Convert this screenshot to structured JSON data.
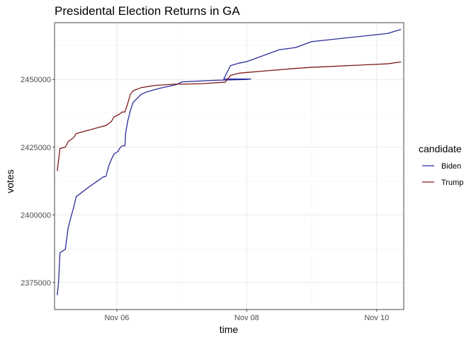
{
  "chart_data": {
    "type": "line",
    "title": "Presidental Election Returns in GA",
    "xlabel": "time",
    "ylabel": "votes",
    "x_unit": "date-time (Nov 2020)",
    "xlim": [
      "2020-11-05T01:00",
      "2020-11-10T10:00"
    ],
    "ylim": [
      2365000,
      2471000
    ],
    "x_ticks": [
      {
        "label": "Nov 06",
        "value": "2020-11-06T00:00"
      },
      {
        "label": "Nov 08",
        "value": "2020-11-08T00:00"
      },
      {
        "label": "Nov 10",
        "value": "2020-11-10T00:00"
      }
    ],
    "y_ticks": [
      {
        "label": "2375000",
        "value": 2375000
      },
      {
        "label": "2400000",
        "value": 2400000
      },
      {
        "label": "2425000",
        "value": 2425000
      },
      {
        "label": "2450000",
        "value": 2450000
      }
    ],
    "grid": true,
    "legend": {
      "title": "candidate",
      "position": "right"
    },
    "series": [
      {
        "name": "Biden",
        "color": "#2b2b9c",
        "points": [
          [
            "2020-11-05T02:00",
            2370300
          ],
          [
            "2020-11-05T02:30",
            2375300
          ],
          [
            "2020-11-05T03:00",
            2386000
          ],
          [
            "2020-11-05T05:00",
            2387300
          ],
          [
            "2020-11-05T06:00",
            2395000
          ],
          [
            "2020-11-05T07:00",
            2399000
          ],
          [
            "2020-11-05T08:00",
            2402500
          ],
          [
            "2020-11-05T09:00",
            2406700
          ],
          [
            "2020-11-05T14:00",
            2410500
          ],
          [
            "2020-11-05T19:00",
            2414000
          ],
          [
            "2020-11-05T20:00",
            2414200
          ],
          [
            "2020-11-05T21:00",
            2418000
          ],
          [
            "2020-11-05T22:00",
            2420500
          ],
          [
            "2020-11-05T23:00",
            2422500
          ],
          [
            "2020-11-06T00:30",
            2423500
          ],
          [
            "2020-11-06T01:00",
            2424500
          ],
          [
            "2020-11-06T02:00",
            2425500
          ],
          [
            "2020-11-06T03:00",
            2425500
          ],
          [
            "2020-11-06T03:15",
            2430000
          ],
          [
            "2020-11-06T04:00",
            2434500
          ],
          [
            "2020-11-06T05:00",
            2438500
          ],
          [
            "2020-11-06T06:00",
            2441500
          ],
          [
            "2020-11-06T09:00",
            2444500
          ],
          [
            "2020-11-06T11:00",
            2445400
          ],
          [
            "2020-11-06T16:00",
            2446800
          ],
          [
            "2020-11-06T22:00",
            2448100
          ],
          [
            "2020-11-07T00:00",
            2449100
          ],
          [
            "2020-11-07T06:00",
            2449400
          ],
          [
            "2020-11-07T12:00",
            2449700
          ],
          [
            "2020-11-08T00:00",
            2450000
          ],
          [
            "2020-11-08T01:30",
            2450200
          ],
          [
            "2020-11-07T15:30",
            2450200
          ],
          [
            "2020-11-07T18:00",
            2455100
          ],
          [
            "2020-11-07T21:00",
            2456000
          ],
          [
            "2020-11-08T00:00",
            2456600
          ],
          [
            "2020-11-08T12:00",
            2461000
          ],
          [
            "2020-11-08T18:00",
            2461800
          ],
          [
            "2020-11-09T00:00",
            2464000
          ],
          [
            "2020-11-10T04:00",
            2467000
          ],
          [
            "2020-11-10T09:00",
            2468500
          ]
        ]
      },
      {
        "name": "Trump",
        "color": "#7f1a1a",
        "points": [
          [
            "2020-11-05T02:00",
            2416200
          ],
          [
            "2020-11-05T03:00",
            2424500
          ],
          [
            "2020-11-05T05:00",
            2425000
          ],
          [
            "2020-11-05T06:00",
            2427000
          ],
          [
            "2020-11-05T08:00",
            2428500
          ],
          [
            "2020-11-05T09:00",
            2430000
          ],
          [
            "2020-11-05T18:00",
            2432500
          ],
          [
            "2020-11-05T20:00",
            2433000
          ],
          [
            "2020-11-05T22:00",
            2434500
          ],
          [
            "2020-11-05T23:00",
            2436200
          ],
          [
            "2020-11-06T01:00",
            2437200
          ],
          [
            "2020-11-06T02:00",
            2438000
          ],
          [
            "2020-11-06T03:00",
            2438000
          ],
          [
            "2020-11-06T04:00",
            2441000
          ],
          [
            "2020-11-06T05:00",
            2444500
          ],
          [
            "2020-11-06T06:00",
            2445800
          ],
          [
            "2020-11-06T09:00",
            2447000
          ],
          [
            "2020-11-06T14:00",
            2447800
          ],
          [
            "2020-11-06T22:00",
            2448300
          ],
          [
            "2020-11-07T02:00",
            2448300
          ],
          [
            "2020-11-07T08:00",
            2448500
          ],
          [
            "2020-11-07T14:00",
            2448900
          ],
          [
            "2020-11-07T16:00",
            2449000
          ],
          [
            "2020-11-07T18:00",
            2451500
          ],
          [
            "2020-11-07T21:00",
            2452300
          ],
          [
            "2020-11-08T00:00",
            2452600
          ],
          [
            "2020-11-08T12:00",
            2453600
          ],
          [
            "2020-11-08T18:00",
            2454100
          ],
          [
            "2020-11-09T00:00",
            2454500
          ],
          [
            "2020-11-10T04:00",
            2455800
          ],
          [
            "2020-11-10T09:00",
            2456500
          ]
        ]
      }
    ]
  }
}
